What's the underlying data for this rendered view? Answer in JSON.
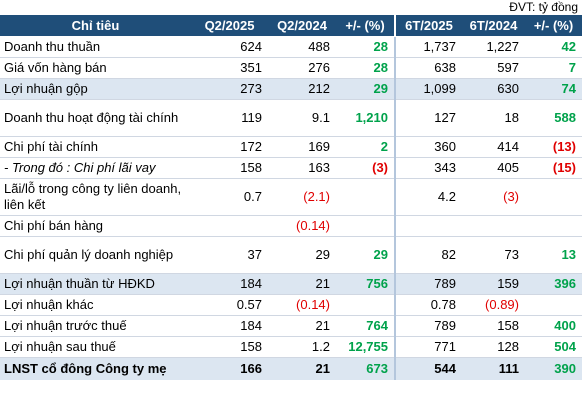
{
  "unit_label": "ĐVT: tỷ đồng",
  "headers": [
    "Chỉ tiêu",
    "Q2/2025",
    "Q2/2024",
    "+/- (%)",
    "6T/2025",
    "6T/2024",
    "+/- (%)"
  ],
  "colors": {
    "header_bg": "#1f4e79",
    "row_shade": "#dce6f1",
    "positive": "#00a24b",
    "negative": "#e00000"
  },
  "rows": [
    {
      "label": "Doanh thu thuần",
      "q2_2025": "624",
      "q2_2024": "488",
      "q_pct": "28",
      "h1_2025": "1,737",
      "h1_2024": "1,227",
      "h1_pct": "42"
    },
    {
      "label": "Giá vốn hàng bán",
      "q2_2025": "351",
      "q2_2024": "276",
      "q_pct": "28",
      "h1_2025": "638",
      "h1_2024": "597",
      "h1_pct": "7"
    },
    {
      "label": "Lợi nhuận gộp",
      "q2_2025": "273",
      "q2_2024": "212",
      "q_pct": "29",
      "h1_2025": "1,099",
      "h1_2024": "630",
      "h1_pct": "74"
    },
    {
      "label": "Doanh thu hoạt động tài chính",
      "q2_2025": "119",
      "q2_2024": "9.1",
      "q_pct": "1,210",
      "h1_2025": "127",
      "h1_2024": "18",
      "h1_pct": "588"
    },
    {
      "label": "Chi phí tài chính",
      "q2_2025": "172",
      "q2_2024": "169",
      "q_pct": "2",
      "h1_2025": "360",
      "h1_2024": "414",
      "h1_pct": "(13)"
    },
    {
      "label": "- Trong đó : Chi phí lãi vay",
      "q2_2025": "158",
      "q2_2024": "163",
      "q_pct": "(3)",
      "h1_2025": "343",
      "h1_2024": "405",
      "h1_pct": "(15)"
    },
    {
      "label": "Lãi/lỗ trong công ty liên doanh, liên kết",
      "q2_2025": "0.7",
      "q2_2024": "(2.1)",
      "q_pct": "",
      "h1_2025": "4.2",
      "h1_2024": "(3)",
      "h1_pct": ""
    },
    {
      "label": "Chi phí bán hàng",
      "q2_2025": "",
      "q2_2024": "(0.14)",
      "q_pct": "",
      "h1_2025": "",
      "h1_2024": "",
      "h1_pct": ""
    },
    {
      "label": "Chi phí quản lý doanh nghiệp",
      "q2_2025": "37",
      "q2_2024": "29",
      "q_pct": "29",
      "h1_2025": "82",
      "h1_2024": "73",
      "h1_pct": "13"
    },
    {
      "label": "Lợi nhuận thuần từ HĐKD",
      "q2_2025": "184",
      "q2_2024": "21",
      "q_pct": "756",
      "h1_2025": "789",
      "h1_2024": "159",
      "h1_pct": "396"
    },
    {
      "label": "Lợi nhuận khác",
      "q2_2025": "0.57",
      "q2_2024": "(0.14)",
      "q_pct": "",
      "h1_2025": "0.78",
      "h1_2024": "(0.89)",
      "h1_pct": ""
    },
    {
      "label": "Lợi nhuận trước thuế",
      "q2_2025": "184",
      "q2_2024": "21",
      "q_pct": "764",
      "h1_2025": "789",
      "h1_2024": "158",
      "h1_pct": "400"
    },
    {
      "label": "Lợi nhuận sau thuế",
      "q2_2025": "158",
      "q2_2024": "1.2",
      "q_pct": "12,755",
      "h1_2025": "771",
      "h1_2024": "128",
      "h1_pct": "504"
    },
    {
      "label": "LNST cổ đông Công ty mẹ",
      "q2_2025": "166",
      "q2_2024": "21",
      "q_pct": "673",
      "h1_2025": "544",
      "h1_2024": "111",
      "h1_pct": "390"
    }
  ]
}
